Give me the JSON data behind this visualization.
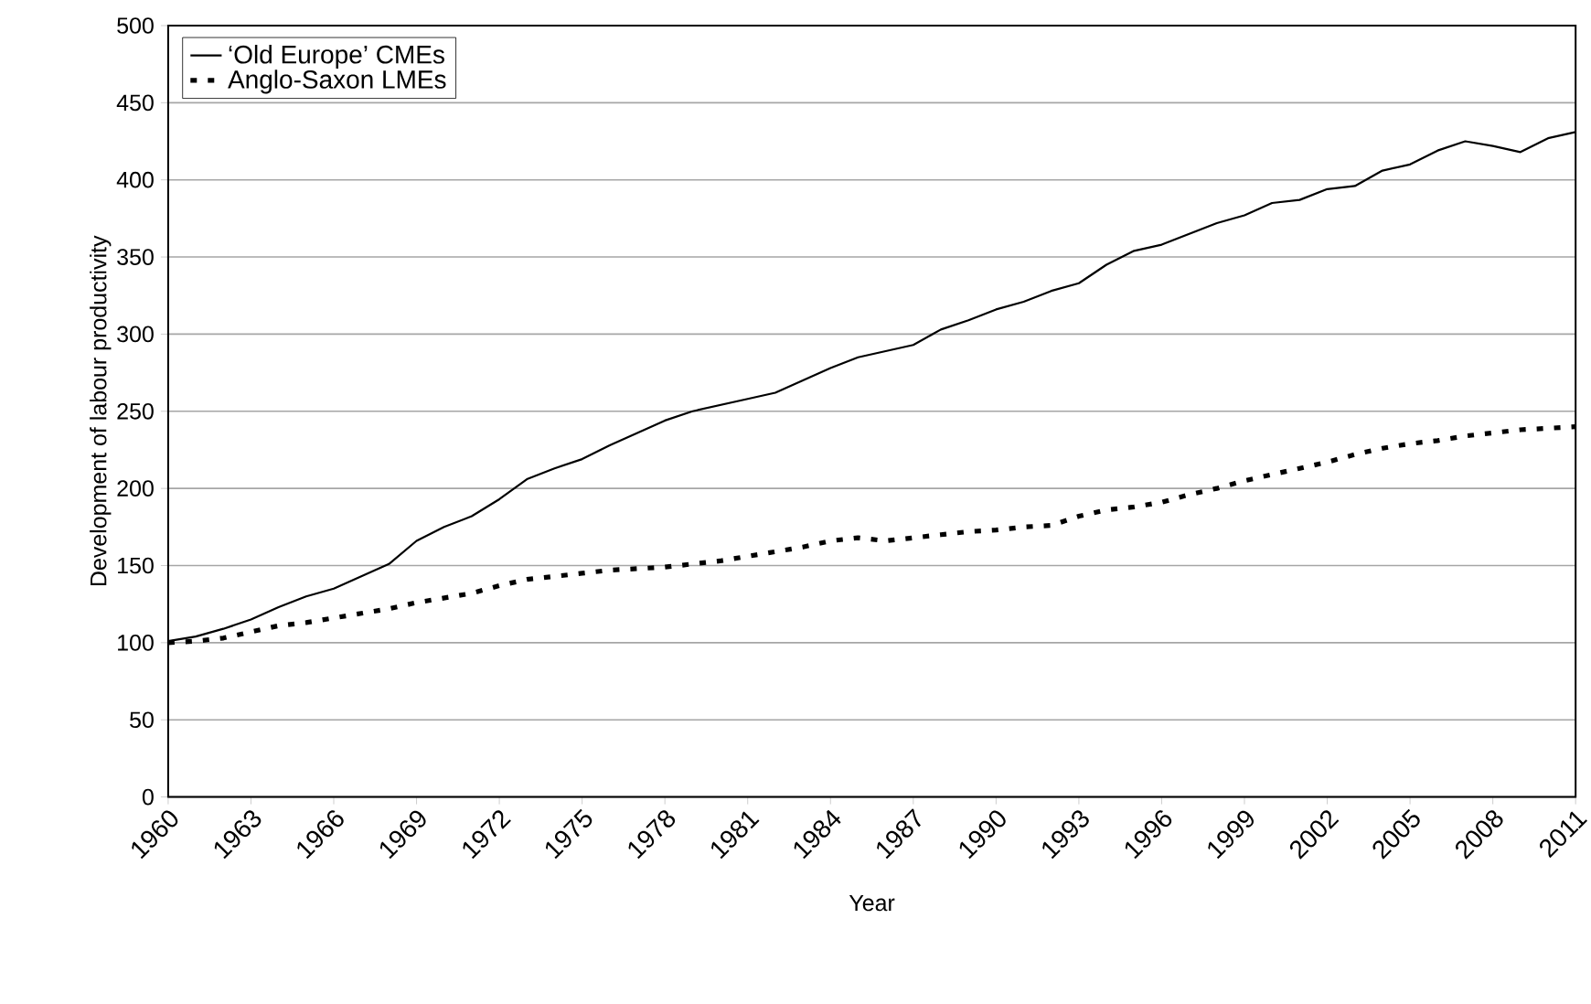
{
  "chart_data": {
    "type": "line",
    "xlabel": "Year",
    "ylabel": "Development of labour productivity",
    "x": [
      1960,
      1961,
      1962,
      1963,
      1964,
      1965,
      1966,
      1967,
      1968,
      1969,
      1970,
      1971,
      1972,
      1973,
      1974,
      1975,
      1976,
      1977,
      1978,
      1979,
      1980,
      1981,
      1982,
      1983,
      1984,
      1985,
      1986,
      1987,
      1988,
      1989,
      1990,
      1991,
      1992,
      1993,
      1994,
      1995,
      1996,
      1997,
      1998,
      1999,
      2000,
      2001,
      2002,
      2003,
      2004,
      2005,
      2006,
      2007,
      2008,
      2009,
      2010,
      2011
    ],
    "series": [
      {
        "name": "‘Old Europe’ CMEs",
        "color": "#000000",
        "line_style": "solid",
        "values": [
          101,
          104,
          109,
          115,
          123,
          130,
          135,
          143,
          151,
          166,
          175,
          182,
          193,
          206,
          213,
          219,
          228,
          236,
          244,
          250,
          254,
          258,
          262,
          270,
          278,
          285,
          289,
          293,
          303,
          309,
          316,
          321,
          328,
          333,
          345,
          354,
          358,
          365,
          372,
          377,
          385,
          387,
          394,
          396,
          406,
          410,
          419,
          425,
          422,
          418,
          427,
          431
        ]
      },
      {
        "name": "Anglo-Saxon LMEs",
        "color": "#000000",
        "line_style": "dashed",
        "values": [
          100,
          101,
          103,
          107,
          111,
          113,
          116,
          119,
          122,
          126,
          129,
          132,
          137,
          141,
          143,
          145,
          147,
          148,
          149,
          151,
          153,
          156,
          159,
          162,
          166,
          168,
          166,
          168,
          170,
          172,
          173,
          175,
          176,
          182,
          186,
          188,
          191,
          196,
          200,
          205,
          209,
          213,
          217,
          222,
          226,
          229,
          231,
          234,
          236,
          238,
          239,
          240
        ]
      }
    ],
    "xlim": [
      1960,
      2011
    ],
    "xticks": [
      1960,
      1963,
      1966,
      1969,
      1972,
      1975,
      1978,
      1981,
      1984,
      1987,
      1990,
      1993,
      1996,
      1999,
      2002,
      2005,
      2008,
      2011
    ],
    "ylim": [
      0,
      500
    ],
    "yticks": [
      0,
      50,
      100,
      150,
      200,
      250,
      300,
      350,
      400,
      450,
      500
    ],
    "grid": "y",
    "legend": "top left",
    "marker": "none"
  }
}
